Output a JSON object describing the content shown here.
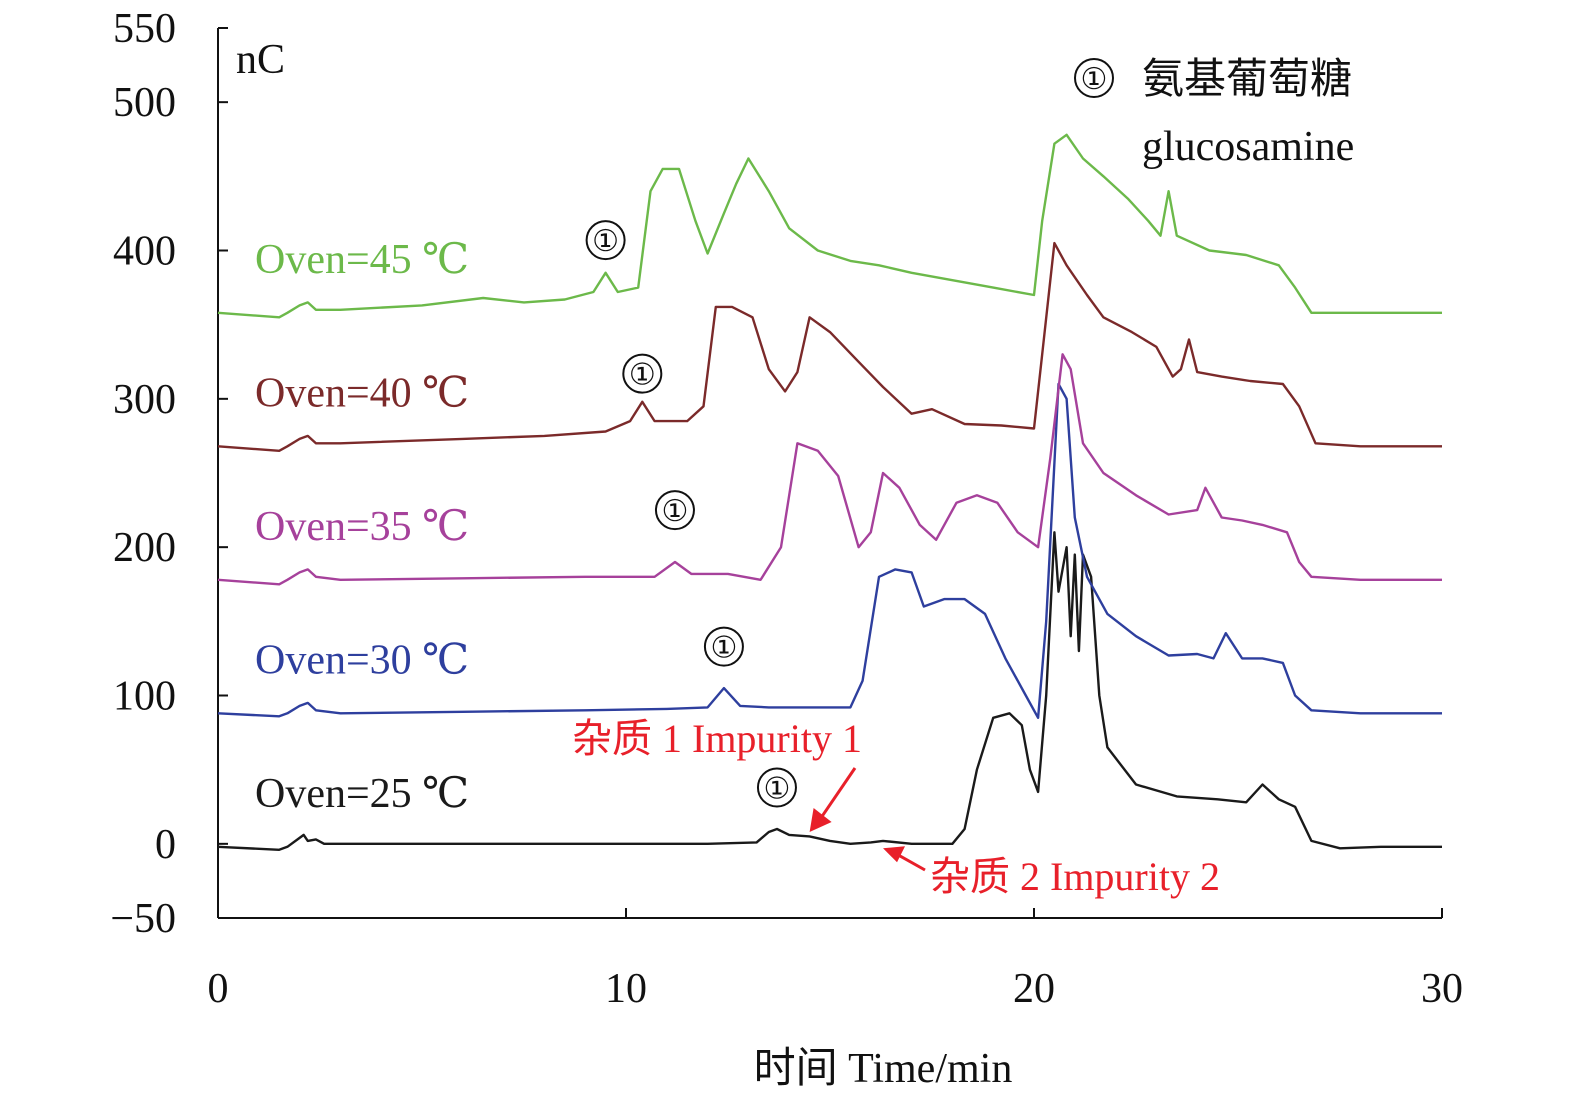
{
  "chart_data": {
    "type": "line",
    "xlabel": "时间  Time/min",
    "ylabel": "nC",
    "xlim": [
      0,
      30
    ],
    "ylim": [
      -50,
      550
    ],
    "xticks": [
      "0",
      "10",
      "20",
      "30"
    ],
    "yticks": [
      "550",
      "500",
      "400",
      "300",
      "200",
      "100",
      "0",
      "−50"
    ],
    "grid": false,
    "legend": {
      "marker": "①",
      "name_cn": "氨基葡萄糖",
      "name_en": "glucosamine"
    },
    "annotations": [
      {
        "text": "杂质 1 Impurity 1",
        "x": 14.5,
        "y": 8,
        "color": "#e8202a"
      },
      {
        "text": "杂质 2 Impurity 2",
        "x": 16.3,
        "y": -3,
        "color": "#e8202a"
      }
    ],
    "peak_marker": "①",
    "series": [
      {
        "name": "Oven=25  ℃",
        "color": "#1a1a1a",
        "peak_label": [
          13.7,
          13
        ],
        "points": [
          [
            0,
            -2
          ],
          [
            1.5,
            -4
          ],
          [
            1.7,
            -2
          ],
          [
            2.0,
            4
          ],
          [
            2.1,
            6
          ],
          [
            2.2,
            2
          ],
          [
            2.4,
            3
          ],
          [
            2.6,
            0
          ],
          [
            4,
            0
          ],
          [
            6,
            0
          ],
          [
            8,
            0
          ],
          [
            10,
            0
          ],
          [
            12,
            0
          ],
          [
            13.2,
            1
          ],
          [
            13.5,
            8
          ],
          [
            13.7,
            10
          ],
          [
            14.0,
            6
          ],
          [
            14.5,
            5
          ],
          [
            15.0,
            2
          ],
          [
            15.5,
            0
          ],
          [
            16.0,
            1
          ],
          [
            16.3,
            2
          ],
          [
            17.0,
            0
          ],
          [
            17.5,
            0
          ],
          [
            18.0,
            0
          ],
          [
            18.3,
            10
          ],
          [
            18.6,
            50
          ],
          [
            19.0,
            85
          ],
          [
            19.4,
            88
          ],
          [
            19.7,
            80
          ],
          [
            19.9,
            50
          ],
          [
            20.1,
            35
          ],
          [
            20.3,
            100
          ],
          [
            20.5,
            210
          ],
          [
            20.6,
            170
          ],
          [
            20.8,
            200
          ],
          [
            20.9,
            140
          ],
          [
            21.0,
            195
          ],
          [
            21.1,
            130
          ],
          [
            21.2,
            195
          ],
          [
            21.4,
            180
          ],
          [
            21.6,
            100
          ],
          [
            21.8,
            65
          ],
          [
            22.5,
            40
          ],
          [
            23.5,
            32
          ],
          [
            24.5,
            30
          ],
          [
            25.2,
            28
          ],
          [
            25.6,
            40
          ],
          [
            26.0,
            30
          ],
          [
            26.4,
            25
          ],
          [
            26.8,
            2
          ],
          [
            27.5,
            -3
          ],
          [
            28.5,
            -2
          ],
          [
            30,
            -2
          ]
        ]
      },
      {
        "name": "Oven=30  ℃",
        "color": "#2e3f9e",
        "peak_label": [
          12.4,
          18
        ],
        "points": [
          [
            0,
            88
          ],
          [
            1.5,
            86
          ],
          [
            1.7,
            88
          ],
          [
            2.0,
            93
          ],
          [
            2.2,
            95
          ],
          [
            2.4,
            90
          ],
          [
            3,
            88
          ],
          [
            6,
            89
          ],
          [
            9,
            90
          ],
          [
            11,
            91
          ],
          [
            12.0,
            92
          ],
          [
            12.4,
            105
          ],
          [
            12.8,
            93
          ],
          [
            13.5,
            92
          ],
          [
            14.5,
            92
          ],
          [
            15.5,
            92
          ],
          [
            15.8,
            110
          ],
          [
            16.2,
            180
          ],
          [
            16.6,
            185
          ],
          [
            17.0,
            183
          ],
          [
            17.3,
            160
          ],
          [
            17.8,
            165
          ],
          [
            18.3,
            165
          ],
          [
            18.8,
            155
          ],
          [
            19.3,
            125
          ],
          [
            19.8,
            100
          ],
          [
            20.1,
            85
          ],
          [
            20.3,
            150
          ],
          [
            20.6,
            310
          ],
          [
            20.8,
            300
          ],
          [
            21.0,
            220
          ],
          [
            21.3,
            180
          ],
          [
            21.8,
            155
          ],
          [
            22.5,
            140
          ],
          [
            23.3,
            127
          ],
          [
            24.0,
            128
          ],
          [
            24.4,
            125
          ],
          [
            24.7,
            142
          ],
          [
            25.1,
            125
          ],
          [
            25.6,
            125
          ],
          [
            26.1,
            122
          ],
          [
            26.4,
            100
          ],
          [
            26.8,
            90
          ],
          [
            28,
            88
          ],
          [
            30,
            88
          ]
        ]
      },
      {
        "name": "Oven=35  ℃",
        "color": "#a6419b",
        "peak_label": [
          11.2,
          20
        ],
        "points": [
          [
            0,
            178
          ],
          [
            1.5,
            175
          ],
          [
            1.7,
            178
          ],
          [
            2.0,
            183
          ],
          [
            2.2,
            185
          ],
          [
            2.4,
            180
          ],
          [
            3,
            178
          ],
          [
            6,
            179
          ],
          [
            9,
            180
          ],
          [
            10.7,
            180
          ],
          [
            11.2,
            190
          ],
          [
            11.6,
            182
          ],
          [
            12.5,
            182
          ],
          [
            13.3,
            178
          ],
          [
            13.8,
            200
          ],
          [
            14.2,
            270
          ],
          [
            14.7,
            265
          ],
          [
            15.2,
            248
          ],
          [
            15.7,
            200
          ],
          [
            16.0,
            210
          ],
          [
            16.3,
            250
          ],
          [
            16.7,
            240
          ],
          [
            17.2,
            215
          ],
          [
            17.6,
            205
          ],
          [
            18.1,
            230
          ],
          [
            18.6,
            235
          ],
          [
            19.1,
            230
          ],
          [
            19.6,
            210
          ],
          [
            20.1,
            200
          ],
          [
            20.4,
            260
          ],
          [
            20.7,
            330
          ],
          [
            20.9,
            320
          ],
          [
            21.2,
            270
          ],
          [
            21.7,
            250
          ],
          [
            22.5,
            235
          ],
          [
            23.3,
            222
          ],
          [
            24.0,
            225
          ],
          [
            24.2,
            240
          ],
          [
            24.6,
            220
          ],
          [
            25.1,
            218
          ],
          [
            25.6,
            215
          ],
          [
            26.2,
            210
          ],
          [
            26.5,
            190
          ],
          [
            26.8,
            180
          ],
          [
            28,
            178
          ],
          [
            30,
            178
          ]
        ]
      },
      {
        "name": "Oven=40  ℃",
        "color": "#7b2a2a",
        "peak_label": [
          10.4,
          22
        ],
        "points": [
          [
            0,
            268
          ],
          [
            1.5,
            265
          ],
          [
            1.7,
            268
          ],
          [
            2.0,
            273
          ],
          [
            2.2,
            275
          ],
          [
            2.4,
            270
          ],
          [
            3,
            270
          ],
          [
            6,
            273
          ],
          [
            8,
            275
          ],
          [
            9.5,
            278
          ],
          [
            10.1,
            285
          ],
          [
            10.4,
            298
          ],
          [
            10.7,
            285
          ],
          [
            11.5,
            285
          ],
          [
            11.9,
            295
          ],
          [
            12.2,
            362
          ],
          [
            12.6,
            362
          ],
          [
            13.1,
            355
          ],
          [
            13.5,
            320
          ],
          [
            13.9,
            305
          ],
          [
            14.2,
            318
          ],
          [
            14.5,
            355
          ],
          [
            15.0,
            345
          ],
          [
            15.7,
            325
          ],
          [
            16.3,
            308
          ],
          [
            17.0,
            290
          ],
          [
            17.5,
            293
          ],
          [
            18.3,
            283
          ],
          [
            19.2,
            282
          ],
          [
            20.0,
            280
          ],
          [
            20.2,
            330
          ],
          [
            20.5,
            405
          ],
          [
            20.8,
            390
          ],
          [
            21.3,
            370
          ],
          [
            21.7,
            355
          ],
          [
            22.4,
            345
          ],
          [
            23.0,
            335
          ],
          [
            23.4,
            315
          ],
          [
            23.6,
            320
          ],
          [
            23.8,
            340
          ],
          [
            24.0,
            318
          ],
          [
            24.6,
            315
          ],
          [
            25.3,
            312
          ],
          [
            26.1,
            310
          ],
          [
            26.5,
            295
          ],
          [
            26.9,
            270
          ],
          [
            28,
            268
          ],
          [
            30,
            268
          ]
        ]
      },
      {
        "name": "Oven=45  ℃",
        "color": "#6cb94a",
        "peak_label": [
          9.5,
          22
        ],
        "points": [
          [
            0,
            358
          ],
          [
            1.5,
            355
          ],
          [
            1.7,
            358
          ],
          [
            2.0,
            363
          ],
          [
            2.2,
            365
          ],
          [
            2.4,
            360
          ],
          [
            3,
            360
          ],
          [
            5,
            363
          ],
          [
            6.5,
            368
          ],
          [
            7.5,
            365
          ],
          [
            8.5,
            367
          ],
          [
            9.2,
            372
          ],
          [
            9.5,
            385
          ],
          [
            9.8,
            372
          ],
          [
            10.3,
            375
          ],
          [
            10.6,
            440
          ],
          [
            10.9,
            455
          ],
          [
            11.3,
            455
          ],
          [
            11.7,
            420
          ],
          [
            12.0,
            398
          ],
          [
            12.4,
            425
          ],
          [
            12.7,
            445
          ],
          [
            13.0,
            462
          ],
          [
            13.5,
            440
          ],
          [
            14.0,
            415
          ],
          [
            14.7,
            400
          ],
          [
            15.5,
            393
          ],
          [
            16.2,
            390
          ],
          [
            17.0,
            385
          ],
          [
            18.0,
            380
          ],
          [
            19.0,
            375
          ],
          [
            20.0,
            370
          ],
          [
            20.2,
            420
          ],
          [
            20.5,
            472
          ],
          [
            20.8,
            478
          ],
          [
            21.2,
            462
          ],
          [
            21.7,
            450
          ],
          [
            22.3,
            435
          ],
          [
            22.8,
            420
          ],
          [
            23.1,
            410
          ],
          [
            23.3,
            440
          ],
          [
            23.5,
            410
          ],
          [
            24.3,
            400
          ],
          [
            25.2,
            397
          ],
          [
            26.0,
            390
          ],
          [
            26.4,
            375
          ],
          [
            26.8,
            358
          ],
          [
            28,
            358
          ],
          [
            30,
            358
          ]
        ]
      }
    ]
  }
}
